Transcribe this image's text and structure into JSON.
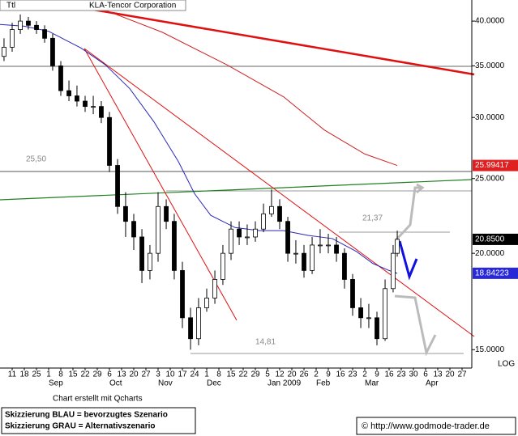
{
  "chart_data": {
    "type": "candlestick",
    "symbol": "Ttl",
    "title": "KLA-Tencor Corporation",
    "log_scale": true,
    "scale_label": "LOG",
    "x": [
      -0.67,
      0,
      0.67,
      1.33,
      2,
      2.67,
      3.33,
      4,
      4.67,
      5.33,
      6,
      6.67,
      7.33,
      8,
      8.67,
      9.33,
      10,
      10.67,
      11.33,
      12,
      12.67,
      13.33,
      14,
      14.67,
      15.33,
      16,
      16.67,
      17.33,
      18,
      18.67,
      19.33,
      20,
      20.67,
      21.33,
      22,
      22.67,
      23.33,
      24,
      24.67,
      25.33,
      26,
      26.67,
      27.33,
      28,
      28.67,
      29.33,
      30,
      30.67,
      31.33,
      31.67
    ],
    "open": [
      36,
      37,
      39,
      40,
      39.5,
      39,
      38,
      35,
      32.5,
      32,
      31.5,
      31,
      31,
      30,
      26,
      23,
      22,
      21,
      19,
      20,
      23,
      22,
      19,
      16.5,
      15.5,
      17,
      17.5,
      18.5,
      20,
      21.5,
      21,
      21,
      21.5,
      22.5,
      23,
      22,
      20,
      20,
      19,
      20.5,
      20.5,
      20.5,
      20,
      18.5,
      17,
      16.5,
      16.5,
      15.5,
      18,
      20
    ],
    "high": [
      38,
      39.8,
      40.8,
      40.5,
      40,
      39.5,
      38.5,
      35.5,
      33.5,
      33,
      32,
      32,
      31.5,
      30.5,
      26.5,
      24,
      22.5,
      21.5,
      20.5,
      24,
      23.5,
      22.5,
      19.5,
      17,
      17.5,
      18,
      19,
      20.5,
      22,
      22,
      21.8,
      22,
      23.2,
      24.2,
      23.5,
      22.3,
      20.8,
      20.5,
      21,
      21.5,
      21.2,
      21,
      20.3,
      18.8,
      17.5,
      17.2,
      16.8,
      18.5,
      20.5,
      21.4
    ],
    "low": [
      35.5,
      36.5,
      38.5,
      39,
      38.5,
      37.5,
      34.5,
      32,
      31.5,
      31,
      30.5,
      30.3,
      29.5,
      25.5,
      22.5,
      21,
      20.2,
      18.3,
      18.5,
      19.5,
      21.5,
      18.5,
      16,
      15,
      15.2,
      16.8,
      17.2,
      18.2,
      19.6,
      20.5,
      20.5,
      20.7,
      21.3,
      22.3,
      21.5,
      19.5,
      19.4,
      18.6,
      18.8,
      20,
      20,
      19.5,
      18,
      16.6,
      16,
      16,
      15.2,
      15.4,
      17.8,
      19.8
    ],
    "close": [
      37,
      39,
      40,
      39.5,
      39,
      38,
      35,
      32.5,
      32,
      31.5,
      31,
      31,
      30,
      26,
      23,
      22,
      21,
      19,
      20,
      23,
      22,
      19,
      16.5,
      15.5,
      17,
      17.5,
      18.5,
      20,
      21.5,
      21,
      21,
      21.5,
      22.5,
      23,
      22,
      20,
      20,
      19,
      20.5,
      20.5,
      20.5,
      20,
      18.5,
      17,
      16.5,
      16.5,
      15.5,
      18,
      20,
      20.85
    ],
    "close_label": "20.8500",
    "overlays": [
      {
        "color": "#2828b8",
        "x": [
          -1,
          1,
          3,
          5.67,
          7.67,
          9.67,
          11.67,
          13.67,
          15,
          16.33,
          18.33,
          20.33,
          22.33,
          24.33,
          26.33,
          28.33,
          29.67,
          31,
          31.67
        ],
        "values": [
          39.6,
          39.4,
          38.8,
          36.9,
          35.1,
          32.7,
          29.6,
          26.3,
          23.9,
          22.4,
          21.6,
          21.4,
          21.4,
          21.1,
          20.9,
          20.1,
          19.4,
          19.0,
          18.84223
        ],
        "last_label": "18.84223",
        "label_bg": "#2828d8"
      },
      {
        "color": "#d02020",
        "x": [
          6.33,
          12.33,
          17.67,
          22.33,
          25.67,
          29,
          31.67
        ],
        "values": [
          42.1,
          38.7,
          35.1,
          31.9,
          28.9,
          26.9,
          25.99417
        ],
        "last_label": "25.99417",
        "label_bg": "#e02020"
      }
    ],
    "xlim": [
      -1,
      37.8
    ],
    "ylim": [
      14.2,
      42.6
    ],
    "yticks": [
      {
        "value": 15,
        "label": "15.0000"
      },
      {
        "value": 20,
        "label": "20.0000"
      },
      {
        "value": 25,
        "label": "25.0000"
      },
      {
        "value": 30,
        "label": "30.0000"
      },
      {
        "value": 35,
        "label": "35.0000"
      },
      {
        "value": 40,
        "label": "40.0000"
      }
    ],
    "xticks": [
      {
        "value": 0,
        "label": "11"
      },
      {
        "value": 1,
        "label": "18"
      },
      {
        "value": 2,
        "label": "25"
      },
      {
        "value": 3,
        "label": "1"
      },
      {
        "value": 4,
        "label": "8"
      },
      {
        "value": 5,
        "label": "15"
      },
      {
        "value": 6,
        "label": "22"
      },
      {
        "value": 7,
        "label": "29"
      },
      {
        "value": 8,
        "label": "6"
      },
      {
        "value": 9,
        "label": "13"
      },
      {
        "value": 10,
        "label": "20"
      },
      {
        "value": 11,
        "label": "27"
      },
      {
        "value": 12,
        "label": "3"
      },
      {
        "value": 13,
        "label": "10"
      },
      {
        "value": 14,
        "label": "17"
      },
      {
        "value": 15,
        "label": "24"
      },
      {
        "value": 16,
        "label": "1"
      },
      {
        "value": 17,
        "label": "8"
      },
      {
        "value": 18,
        "label": "15"
      },
      {
        "value": 19,
        "label": "22"
      },
      {
        "value": 20,
        "label": "29"
      },
      {
        "value": 21,
        "label": "5"
      },
      {
        "value": 22,
        "label": "12"
      },
      {
        "value": 23,
        "label": "20"
      },
      {
        "value": 24,
        "label": "26"
      },
      {
        "value": 25,
        "label": "2"
      },
      {
        "value": 26,
        "label": "9"
      },
      {
        "value": 27,
        "label": "16"
      },
      {
        "value": 28,
        "label": "23"
      },
      {
        "value": 29,
        "label": "2"
      },
      {
        "value": 30,
        "label": "9"
      },
      {
        "value": 31,
        "label": "16"
      },
      {
        "value": 32,
        "label": "23"
      },
      {
        "value": 33,
        "label": "30"
      },
      {
        "value": 34,
        "label": "6"
      },
      {
        "value": 35,
        "label": "13"
      },
      {
        "value": 36,
        "label": "20"
      },
      {
        "value": 37,
        "label": "27"
      }
    ],
    "months": [
      {
        "value": 3,
        "label": "Sep"
      },
      {
        "value": 8,
        "label": "Oct"
      },
      {
        "value": 12,
        "label": "Nov"
      },
      {
        "value": 16,
        "label": "Dec"
      },
      {
        "value": 21,
        "label": "Jan 2009"
      },
      {
        "value": 25,
        "label": "Feb"
      },
      {
        "value": 29,
        "label": "Mar"
      },
      {
        "value": 34,
        "label": "Apr"
      }
    ],
    "annotations": [
      "25,50",
      "21,37",
      "14,81"
    ]
  },
  "footer": {
    "credit": "Chart erstellt mit Qcharts",
    "legend": [
      "Skizzierung BLAU = bevorzugtes Szenario",
      "Skizzierung GRAU = Alternativszenario"
    ],
    "copyright": "© http://www.godmode-trader.de"
  }
}
